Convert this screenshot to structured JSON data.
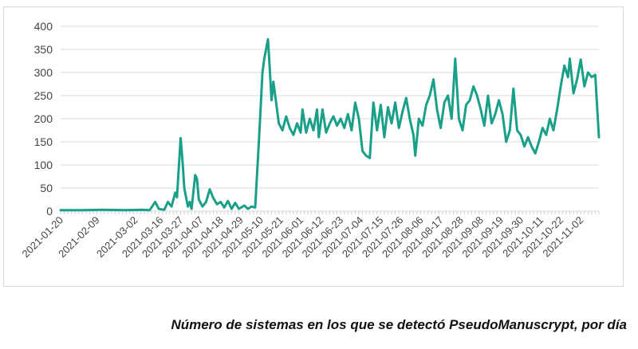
{
  "chart_data": {
    "type": "line",
    "title": "",
    "xlabel": "",
    "ylabel": "",
    "ylim": [
      0,
      400
    ],
    "yticks": [
      0,
      50,
      100,
      150,
      200,
      250,
      300,
      350,
      400
    ],
    "xlim": [
      "2021-01-20",
      "2021-11-12"
    ],
    "xtick_labels": [
      "2021-01-20",
      "2021-02-09",
      "2021-03-02",
      "2021-03-16",
      "2021-03-27",
      "2021-04-07",
      "2021-04-18",
      "2021-04-29",
      "2021-05-10",
      "2021-05-21",
      "2021-06-01",
      "2021-06-12",
      "2021-06-23",
      "2021-07-04",
      "2021-07-15",
      "2021-07-26",
      "2021-08-06",
      "2021-08-17",
      "2021-08-28",
      "2021-09-08",
      "2021-09-19",
      "2021-09-30",
      "2021-10-11",
      "2021-10-22",
      "2021-11-02"
    ],
    "grid": true,
    "line_color": "#1aa088",
    "series": [
      {
        "name": "",
        "points": [
          [
            "2021-01-20",
            2
          ],
          [
            "2021-02-01",
            2
          ],
          [
            "2021-02-12",
            3
          ],
          [
            "2021-02-25",
            2
          ],
          [
            "2021-03-06",
            3
          ],
          [
            "2021-03-10",
            2
          ],
          [
            "2021-03-13",
            20
          ],
          [
            "2021-03-15",
            5
          ],
          [
            "2021-03-18",
            3
          ],
          [
            "2021-03-20",
            20
          ],
          [
            "2021-03-22",
            10
          ],
          [
            "2021-03-24",
            40
          ],
          [
            "2021-03-25",
            30
          ],
          [
            "2021-03-27",
            158
          ],
          [
            "2021-03-28",
            110
          ],
          [
            "2021-03-29",
            50
          ],
          [
            "2021-03-30",
            30
          ],
          [
            "2021-03-31",
            10
          ],
          [
            "2021-04-01",
            20
          ],
          [
            "2021-04-02",
            5
          ],
          [
            "2021-04-04",
            78
          ],
          [
            "2021-04-05",
            70
          ],
          [
            "2021-04-06",
            25
          ],
          [
            "2021-04-08",
            10
          ],
          [
            "2021-04-10",
            20
          ],
          [
            "2021-04-12",
            47
          ],
          [
            "2021-04-14",
            28
          ],
          [
            "2021-04-16",
            15
          ],
          [
            "2021-04-18",
            20
          ],
          [
            "2021-04-20",
            8
          ],
          [
            "2021-04-22",
            22
          ],
          [
            "2021-04-24",
            5
          ],
          [
            "2021-04-26",
            18
          ],
          [
            "2021-04-28",
            5
          ],
          [
            "2021-05-01",
            12
          ],
          [
            "2021-05-03",
            5
          ],
          [
            "2021-05-05",
            10
          ],
          [
            "2021-05-07",
            8
          ],
          [
            "2021-05-09",
            150
          ],
          [
            "2021-05-11",
            300
          ],
          [
            "2021-05-12",
            330
          ],
          [
            "2021-05-14",
            372
          ],
          [
            "2021-05-15",
            310
          ],
          [
            "2021-05-16",
            240
          ],
          [
            "2021-05-17",
            280
          ],
          [
            "2021-05-18",
            250
          ],
          [
            "2021-05-20",
            190
          ],
          [
            "2021-05-22",
            175
          ],
          [
            "2021-05-24",
            205
          ],
          [
            "2021-05-26",
            180
          ],
          [
            "2021-05-28",
            165
          ],
          [
            "2021-05-30",
            190
          ],
          [
            "2021-06-01",
            170
          ],
          [
            "2021-06-02",
            220
          ],
          [
            "2021-06-04",
            170
          ],
          [
            "2021-06-06",
            200
          ],
          [
            "2021-06-08",
            175
          ],
          [
            "2021-06-10",
            220
          ],
          [
            "2021-06-11",
            160
          ],
          [
            "2021-06-13",
            220
          ],
          [
            "2021-06-15",
            170
          ],
          [
            "2021-06-17",
            190
          ],
          [
            "2021-06-19",
            205
          ],
          [
            "2021-06-21",
            185
          ],
          [
            "2021-06-23",
            200
          ],
          [
            "2021-06-25",
            180
          ],
          [
            "2021-06-27",
            210
          ],
          [
            "2021-06-29",
            175
          ],
          [
            "2021-07-01",
            235
          ],
          [
            "2021-07-03",
            200
          ],
          [
            "2021-07-05",
            130
          ],
          [
            "2021-07-07",
            120
          ],
          [
            "2021-07-09",
            115
          ],
          [
            "2021-07-11",
            235
          ],
          [
            "2021-07-13",
            175
          ],
          [
            "2021-07-15",
            230
          ],
          [
            "2021-07-17",
            160
          ],
          [
            "2021-07-19",
            225
          ],
          [
            "2021-07-21",
            190
          ],
          [
            "2021-07-23",
            235
          ],
          [
            "2021-07-25",
            180
          ],
          [
            "2021-07-27",
            215
          ],
          [
            "2021-07-29",
            245
          ],
          [
            "2021-07-31",
            200
          ],
          [
            "2021-08-02",
            165
          ],
          [
            "2021-08-03",
            120
          ],
          [
            "2021-08-05",
            200
          ],
          [
            "2021-08-07",
            185
          ],
          [
            "2021-08-09",
            230
          ],
          [
            "2021-08-11",
            250
          ],
          [
            "2021-08-13",
            285
          ],
          [
            "2021-08-15",
            220
          ],
          [
            "2021-08-17",
            180
          ],
          [
            "2021-08-19",
            235
          ],
          [
            "2021-08-21",
            250
          ],
          [
            "2021-08-23",
            200
          ],
          [
            "2021-08-25",
            330
          ],
          [
            "2021-08-27",
            200
          ],
          [
            "2021-08-29",
            175
          ],
          [
            "2021-08-31",
            230
          ],
          [
            "2021-09-02",
            240
          ],
          [
            "2021-09-04",
            270
          ],
          [
            "2021-09-06",
            250
          ],
          [
            "2021-09-08",
            220
          ],
          [
            "2021-09-10",
            185
          ],
          [
            "2021-09-12",
            250
          ],
          [
            "2021-09-14",
            190
          ],
          [
            "2021-09-16",
            210
          ],
          [
            "2021-09-18",
            240
          ],
          [
            "2021-09-20",
            210
          ],
          [
            "2021-09-22",
            150
          ],
          [
            "2021-09-24",
            175
          ],
          [
            "2021-09-26",
            265
          ],
          [
            "2021-09-28",
            175
          ],
          [
            "2021-09-30",
            165
          ],
          [
            "2021-10-02",
            140
          ],
          [
            "2021-10-04",
            160
          ],
          [
            "2021-10-06",
            140
          ],
          [
            "2021-10-08",
            125
          ],
          [
            "2021-10-10",
            150
          ],
          [
            "2021-10-12",
            180
          ],
          [
            "2021-10-14",
            165
          ],
          [
            "2021-10-16",
            200
          ],
          [
            "2021-10-18",
            175
          ],
          [
            "2021-10-20",
            220
          ],
          [
            "2021-10-22",
            270
          ],
          [
            "2021-10-24",
            315
          ],
          [
            "2021-10-26",
            290
          ],
          [
            "2021-10-27",
            330
          ],
          [
            "2021-10-29",
            255
          ],
          [
            "2021-10-31",
            285
          ],
          [
            "2021-11-02",
            328
          ],
          [
            "2021-11-04",
            270
          ],
          [
            "2021-11-06",
            300
          ],
          [
            "2021-11-08",
            290
          ],
          [
            "2021-11-10",
            295
          ],
          [
            "2021-11-12",
            160
          ]
        ]
      }
    ]
  },
  "caption": "Número de sistemas en los que se detectó PseudoManuscrypt, por día"
}
